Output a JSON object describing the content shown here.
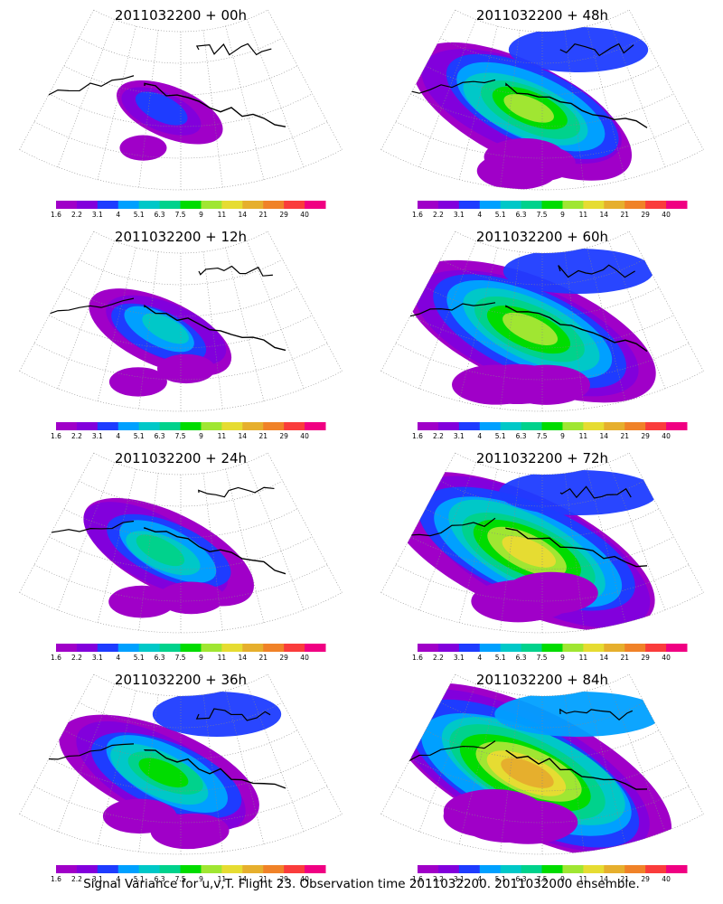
{
  "figure": {
    "caption": "Signal Variance for u,v,T. Flight 23. Observation time 2011032200. 2011032000 ensemble."
  },
  "colorbar": {
    "labels": [
      "1.6",
      "2.2",
      "3.1",
      "4",
      "5.1",
      "6.3",
      "7.5",
      "9",
      "11",
      "14",
      "21",
      "29",
      "40"
    ],
    "colors": [
      "#a000c8",
      "#8200dc",
      "#1e3cff",
      "#00a0ff",
      "#00c8c8",
      "#00d28c",
      "#00dc00",
      "#a0e632",
      "#e6dc32",
      "#e6af2d",
      "#f08228",
      "#fa3c3c",
      "#f00082"
    ]
  },
  "panels": [
    {
      "title": "2011032200 + 00h",
      "lead_hours": 0,
      "coverage": 0.15
    },
    {
      "title": "2011032200 + 48h",
      "lead_hours": 48,
      "coverage": 0.62
    },
    {
      "title": "2011032200 + 12h",
      "lead_hours": 12,
      "coverage": 0.3
    },
    {
      "title": "2011032200 + 60h",
      "lead_hours": 60,
      "coverage": 0.72
    },
    {
      "title": "2011032200 + 24h",
      "lead_hours": 24,
      "coverage": 0.42
    },
    {
      "title": "2011032200 + 72h",
      "lead_hours": 72,
      "coverage": 0.8
    },
    {
      "title": "2011032200 + 36h",
      "lead_hours": 36,
      "coverage": 0.52
    },
    {
      "title": "2011032200 + 84h",
      "lead_hours": 84,
      "coverage": 0.88
    }
  ]
}
